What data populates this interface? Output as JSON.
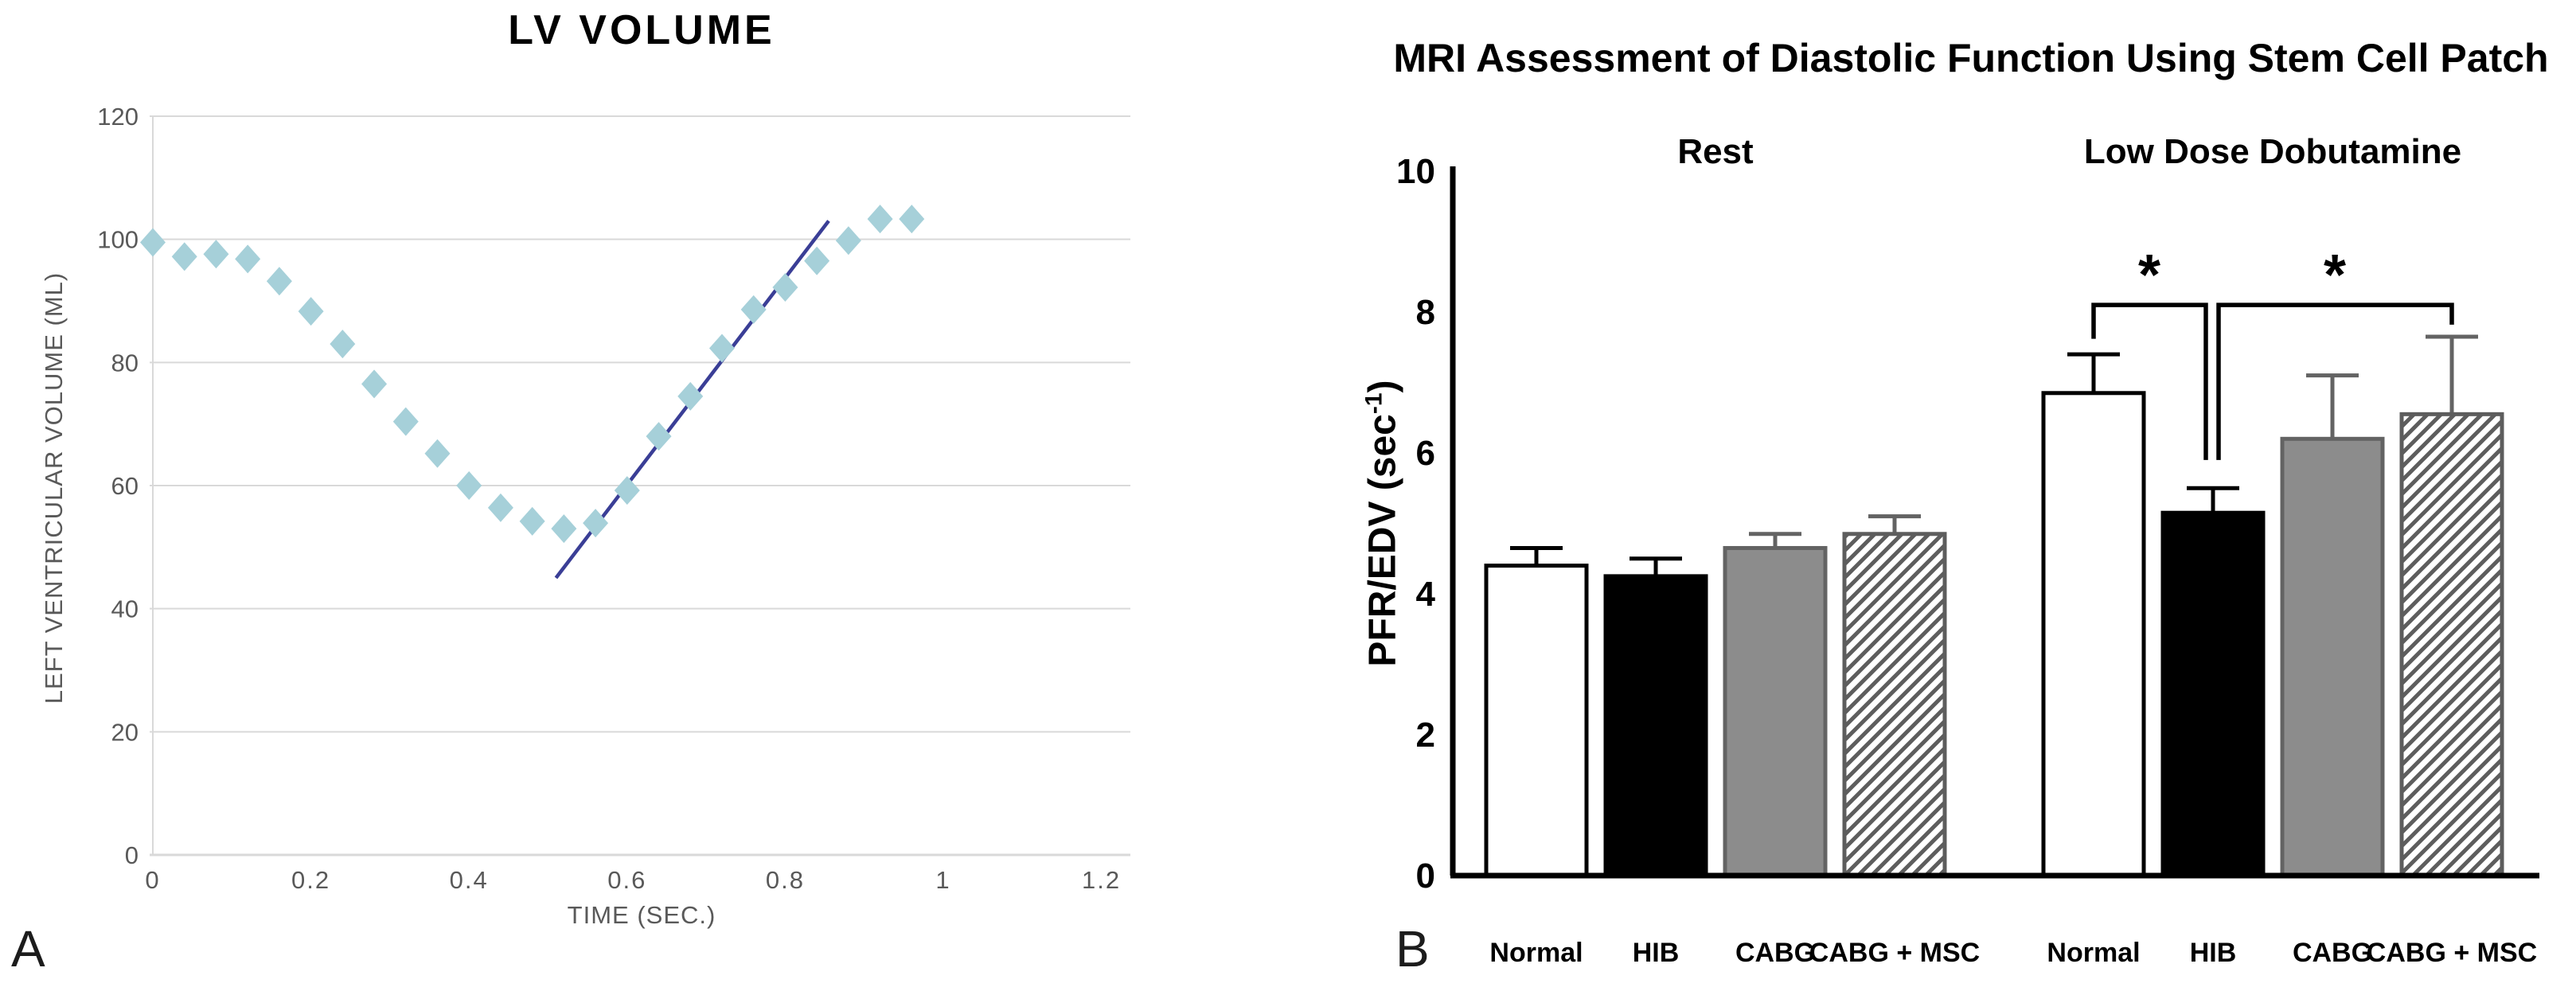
{
  "panels": {
    "a_letter": "A",
    "b_letter": "B"
  },
  "colors": {
    "diamond": "#a6d0d9",
    "trendline": "#3a3e96",
    "gridline": "#d9d9d9",
    "axis_text_a": "#595959",
    "black": "#000000",
    "gray_bar_fill": "#8c8c8c",
    "gray_stroke": "#636363",
    "hatch_stroke": "#5d5d5d"
  },
  "chart_data": [
    {
      "type": "scatter",
      "title": "LV VOLUME",
      "xlabel": "TIME (SEC.)",
      "ylabel": "LEFT VENTRICULAR VOLUME (ML)",
      "xlim": [
        0,
        1.2
      ],
      "ylim": [
        0,
        120
      ],
      "xticks": [
        "0",
        "0.2",
        "0.4",
        "0.6",
        "0.8",
        "1",
        "1.2"
      ],
      "xtick_values": [
        0,
        0.2,
        0.4,
        0.6,
        0.8,
        1,
        1.2
      ],
      "yticks": [
        "0",
        "20",
        "40",
        "60",
        "80",
        "100",
        "120"
      ],
      "ytick_values": [
        0,
        20,
        40,
        60,
        80,
        100,
        120
      ],
      "grid": "horizontal",
      "marker": "diamond",
      "points": [
        [
          0.0,
          99.5
        ],
        [
          0.04,
          97.2
        ],
        [
          0.08,
          97.6
        ],
        [
          0.12,
          96.8
        ],
        [
          0.16,
          93.2
        ],
        [
          0.2,
          88.3
        ],
        [
          0.24,
          83.0
        ],
        [
          0.28,
          76.5
        ],
        [
          0.32,
          70.4
        ],
        [
          0.36,
          65.2
        ],
        [
          0.4,
          60.0
        ],
        [
          0.44,
          56.4
        ],
        [
          0.48,
          54.2
        ],
        [
          0.52,
          53.0
        ],
        [
          0.56,
          53.9
        ],
        [
          0.6,
          59.2
        ],
        [
          0.64,
          68.0
        ],
        [
          0.68,
          74.5
        ],
        [
          0.72,
          82.3
        ],
        [
          0.76,
          88.6
        ],
        [
          0.8,
          92.2
        ],
        [
          0.84,
          96.5
        ],
        [
          0.88,
          99.8
        ],
        [
          0.92,
          103.3
        ],
        [
          0.96,
          103.3
        ]
      ],
      "trendline": {
        "x1": 0.51,
        "y1": 45,
        "x2": 0.855,
        "y2": 103
      }
    },
    {
      "type": "bar",
      "title": "MRI Assessment of Diastolic Function Using Stem Cell Patch",
      "ylabel_parts": {
        "prefix": "PFR/EDV (sec",
        "sup": "-1",
        "suffix": ")"
      },
      "ylim": [
        0,
        10
      ],
      "yticks": [
        "0",
        "2",
        "4",
        "6",
        "8",
        "10"
      ],
      "ytick_values": [
        0,
        2,
        4,
        6,
        8,
        10
      ],
      "legend_position": "none",
      "groups": [
        {
          "label": "Rest",
          "bars": [
            {
              "label": "Normal",
              "value": 4.4,
              "error_top": 4.65,
              "style": "white"
            },
            {
              "label": "HIB",
              "value": 4.25,
              "error_top": 4.5,
              "style": "black"
            },
            {
              "label": "CABG",
              "value": 4.65,
              "error_top": 4.85,
              "style": "gray"
            },
            {
              "label": "CABG + MSC",
              "value": 4.85,
              "error_top": 5.1,
              "style": "hatched"
            }
          ]
        },
        {
          "label": "Low Dose Dobutamine",
          "bars": [
            {
              "label": "Normal",
              "value": 6.85,
              "error_top": 7.4,
              "style": "white"
            },
            {
              "label": "HIB",
              "value": 5.15,
              "error_top": 5.5,
              "style": "black"
            },
            {
              "label": "CABG",
              "value": 6.2,
              "error_top": 7.1,
              "style": "gray"
            },
            {
              "label": "CABG + MSC",
              "value": 6.55,
              "error_top": 7.65,
              "style": "hatched"
            }
          ]
        }
      ],
      "significance": [
        {
          "group": 1,
          "from_bar": 0,
          "to_bar": 1,
          "label": "*"
        },
        {
          "group": 1,
          "from_bar": 1,
          "to_bar": 3,
          "label": "*"
        }
      ]
    }
  ]
}
